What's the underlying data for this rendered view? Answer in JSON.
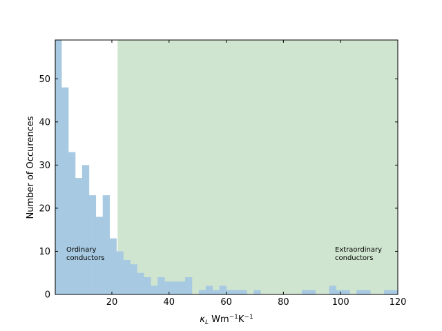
{
  "chart_data": {
    "type": "bar",
    "subtype": "histogram",
    "xlabel_main": "κ",
    "xlabel_sub": "L",
    "xlabel_unit_1": " Wm",
    "xlabel_sup_1": "−1",
    "xlabel_unit_2": "K",
    "xlabel_sup_2": "−1",
    "ylabel": "Number of Occurences",
    "xlim": [
      0.2,
      120
    ],
    "ylim": [
      0,
      59
    ],
    "x_ticks": [
      "20",
      "40",
      "60",
      "80",
      "100",
      "120"
    ],
    "y_ticks": [
      "0",
      "10",
      "20",
      "30",
      "40",
      "50"
    ],
    "bin_width": 2.4,
    "bin_start": 0,
    "counts": [
      59,
      48,
      33,
      27,
      30,
      23,
      18,
      23,
      13,
      10,
      8,
      7,
      5,
      4,
      2,
      4,
      3,
      3,
      3,
      4,
      0,
      1,
      2,
      1,
      2,
      1,
      1,
      1,
      0,
      1,
      0,
      0,
      0,
      0,
      0,
      0,
      1,
      1,
      0,
      0,
      2,
      1,
      1,
      0,
      1,
      1,
      0,
      0,
      1,
      1
    ],
    "highlight_region": {
      "from": 22,
      "to": 120,
      "color": "#cfe5cf"
    },
    "bar_color": "#a7c9e1",
    "annotations": [
      {
        "line1": "Ordinary",
        "line2": "conductors",
        "x": 4,
        "y": 10
      },
      {
        "line1": "Extraordinary",
        "line2": "conductors",
        "x": 98,
        "y": 10
      }
    ],
    "grid": false,
    "legend": "none"
  }
}
